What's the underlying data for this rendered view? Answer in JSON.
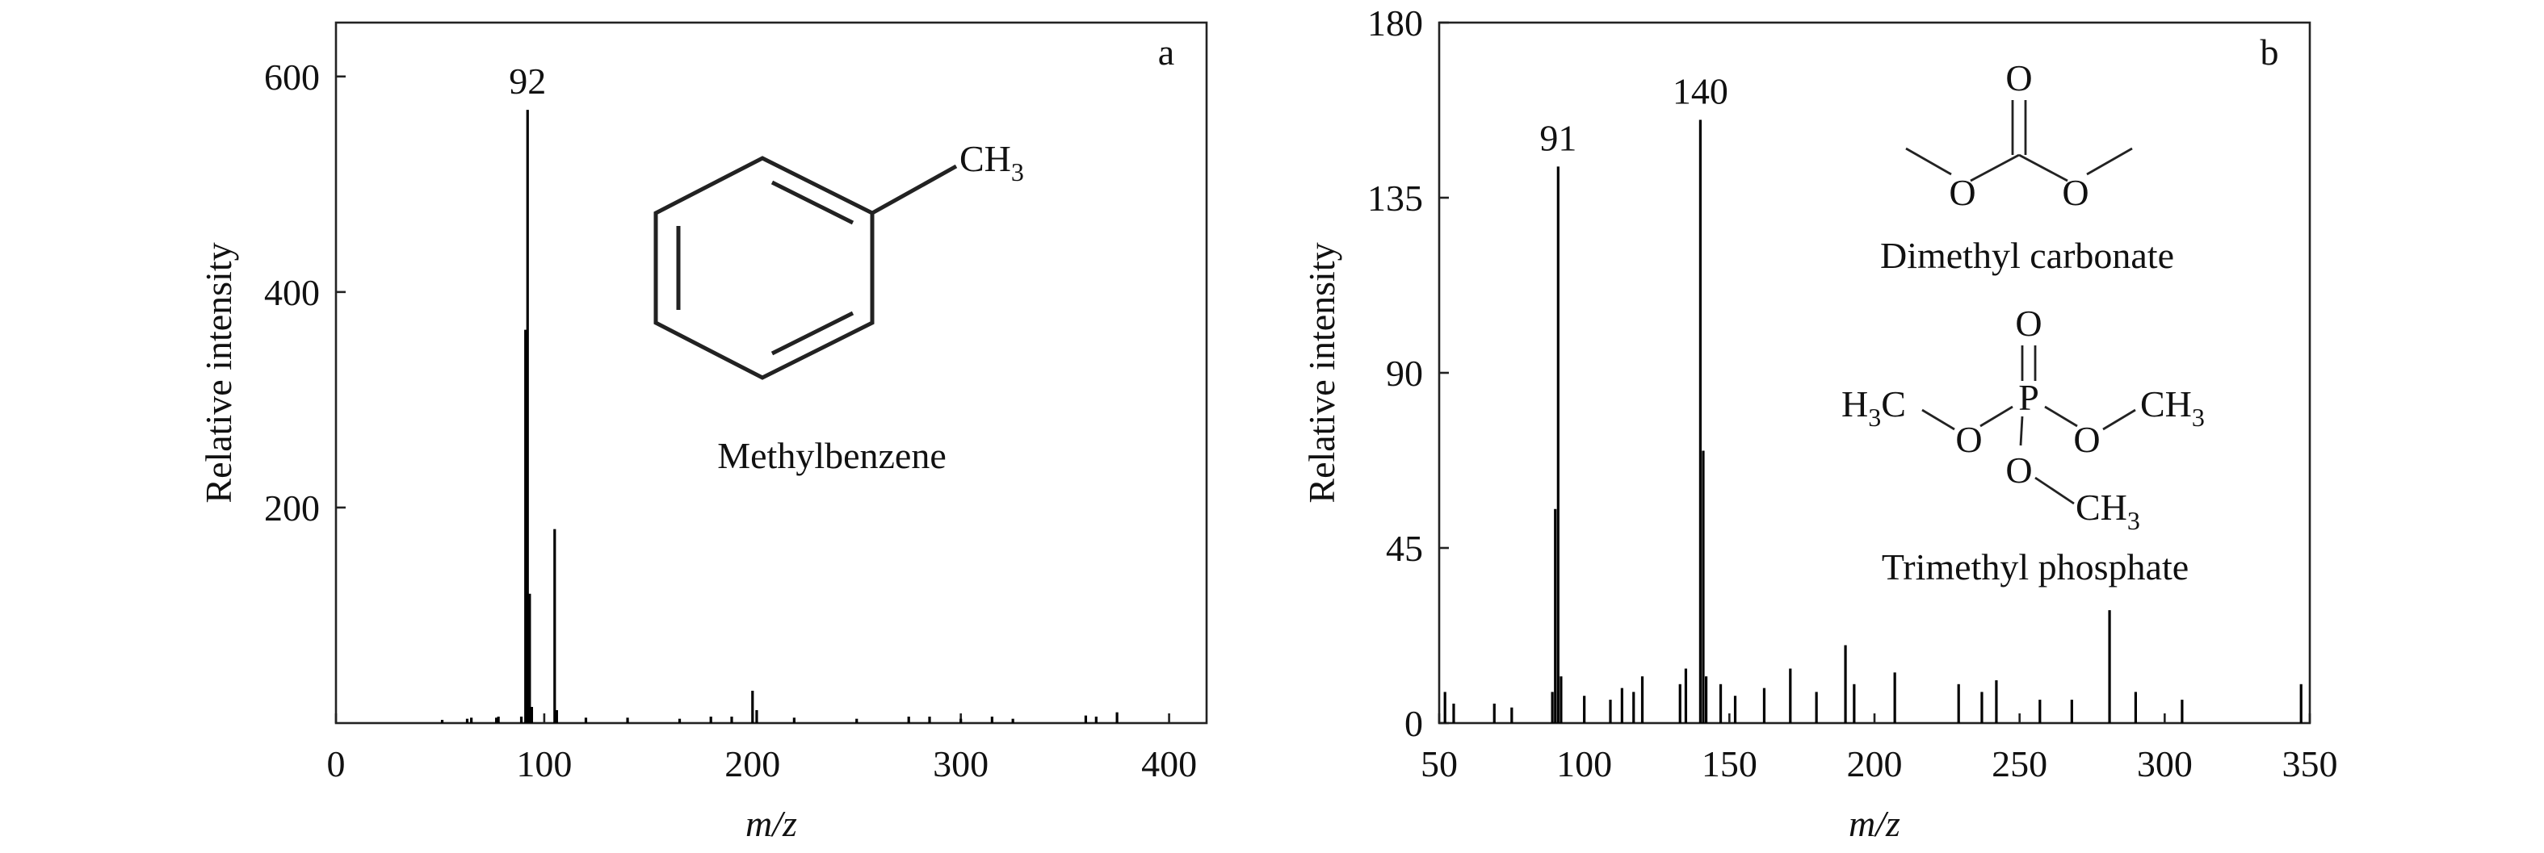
{
  "chart_data": [
    {
      "type": "stem",
      "panel_label": "a",
      "ylabel": "Relative intensity",
      "xlabel": "m/z",
      "xlim": [
        0,
        418
      ],
      "xticks": [
        0,
        100,
        200,
        300,
        400
      ],
      "ylim": [
        0,
        650
      ],
      "yticks": [
        200,
        400,
        600
      ],
      "color": "#000000",
      "x": [
        51,
        63,
        65,
        77,
        78,
        89,
        91,
        92,
        93,
        94,
        105,
        106,
        120,
        140,
        165,
        180,
        190,
        200,
        202,
        220,
        250,
        275,
        285,
        300,
        315,
        325,
        360,
        365,
        375
      ],
      "values": [
        3,
        4,
        5,
        5,
        6,
        6,
        365,
        569,
        120,
        15,
        180,
        12,
        5,
        5,
        4,
        6,
        6,
        30,
        12,
        5,
        4,
        6,
        6,
        4,
        6,
        4,
        7,
        6,
        10
      ],
      "peak_labels": [
        92
      ],
      "compounds": [
        "Methylbenzene"
      ],
      "atoms": [
        [
          "CH",
          "3"
        ]
      ]
    },
    {
      "type": "stem",
      "panel_label": "b",
      "ylabel": "Relative intensity",
      "xlabel": "m/z",
      "xlim": [
        50,
        350
      ],
      "xticks": [
        50,
        100,
        150,
        200,
        250,
        300,
        350
      ],
      "ylim": [
        0,
        180
      ],
      "yticks": [
        0,
        45,
        90,
        135,
        180
      ],
      "color": "#000000",
      "x": [
        52,
        55,
        69,
        75,
        89,
        90,
        91,
        92,
        100,
        109,
        113,
        117,
        120,
        133,
        135,
        140,
        141,
        142,
        147,
        152,
        162,
        171,
        180,
        190,
        193,
        207,
        229,
        237,
        242,
        257,
        268,
        281,
        290,
        306,
        347
      ],
      "values": [
        8,
        5,
        5,
        4,
        8,
        55,
        143,
        12,
        7,
        6,
        9,
        8,
        12,
        10,
        14,
        155,
        70,
        12,
        10,
        7,
        9,
        14,
        8,
        20,
        10,
        13,
        10,
        8,
        11,
        6,
        6,
        29,
        8,
        6,
        10
      ],
      "peak_labels": [
        91,
        140
      ],
      "compounds": [
        "Dimethyl carbonate",
        "Trimethyl phosphate"
      ],
      "atoms": [
        [
          "O"
        ],
        [
          "O"
        ],
        [
          "O"
        ],
        [
          "O"
        ],
        [
          "P"
        ],
        [
          "O"
        ],
        [
          "O"
        ],
        [
          "O"
        ],
        [
          "H",
          "3",
          "C"
        ],
        [
          "CH",
          "3"
        ],
        [
          "CH",
          "3"
        ]
      ]
    }
  ]
}
